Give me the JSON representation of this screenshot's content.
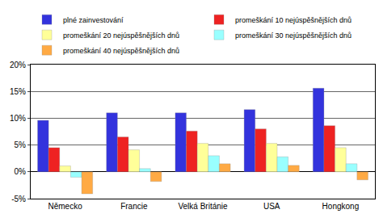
{
  "chart_data": {
    "type": "bar",
    "categories": [
      "Německo",
      "Francie",
      "Velká Británie",
      "USA",
      "Hongkong"
    ],
    "series": [
      {
        "name": "plné zainvestování",
        "color": "#3333dd",
        "values": [
          9.6,
          11.0,
          11.0,
          11.6,
          15.6
        ]
      },
      {
        "name": "promeškání 10 nejúspěšnějších dnů",
        "color": "#ee2222",
        "values": [
          4.5,
          6.5,
          7.6,
          8.0,
          8.6
        ]
      },
      {
        "name": "promeškání 20 nejúspěšnějších dnů",
        "color": "#ffff99",
        "values": [
          1.1,
          4.1,
          5.3,
          5.3,
          4.5
        ]
      },
      {
        "name": "promeškání 30 nejúspěšnějších dnů",
        "color": "#99ffff",
        "values": [
          -1.0,
          0.6,
          3.0,
          2.8,
          1.5
        ]
      },
      {
        "name": "promeškání 40 nejúspěšnějších dnů",
        "color": "#ffaa44",
        "values": [
          -4.1,
          -1.8,
          1.5,
          1.2,
          -1.5
        ]
      }
    ],
    "ylim": [
      -5,
      20
    ],
    "yticks": [
      {
        "value": -5,
        "label": "-5%"
      },
      {
        "value": 0,
        "label": "0%"
      },
      {
        "value": 5,
        "label": "5%"
      },
      {
        "value": 10,
        "label": "10%"
      },
      {
        "value": 15,
        "label": "15%"
      },
      {
        "value": 20,
        "label": "20%"
      }
    ],
    "grid": true,
    "legend": "top"
  }
}
